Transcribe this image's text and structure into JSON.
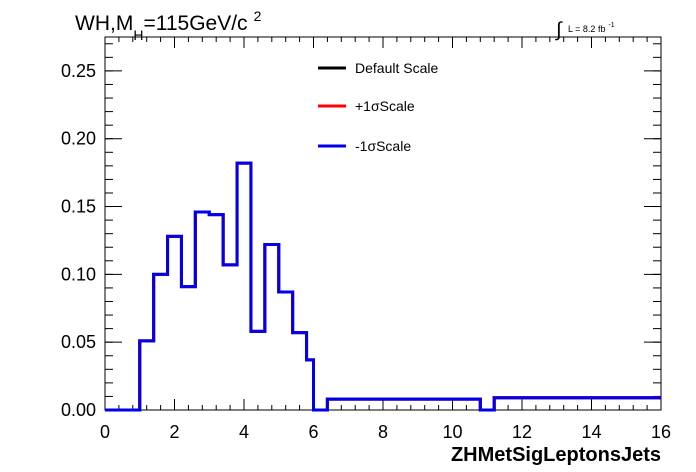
{
  "chart_data": {
    "type": "histogram-step",
    "title": {
      "prefix": "WH,M",
      "subscript": "H",
      "value": "=115GeV/c",
      "superscript": "2"
    },
    "lumi": {
      "integral": "∫",
      "text": "L = 8.2 fb",
      "superscript": "-1"
    },
    "xlabel": "ZHMetSigLeptonsJets",
    "ylabel": "",
    "xlim": [
      0,
      16
    ],
    "ylim": [
      0,
      0.275
    ],
    "x_ticks": [
      {
        "value": 0,
        "label": "0"
      },
      {
        "value": 2,
        "label": "2"
      },
      {
        "value": 4,
        "label": "4"
      },
      {
        "value": 6,
        "label": "6"
      },
      {
        "value": 8,
        "label": "8"
      },
      {
        "value": 10,
        "label": "10"
      },
      {
        "value": 12,
        "label": "12"
      },
      {
        "value": 14,
        "label": "14"
      },
      {
        "value": 16,
        "label": "16"
      }
    ],
    "y_ticks": [
      {
        "value": 0.0,
        "label": "0.00"
      },
      {
        "value": 0.05,
        "label": "0.05"
      },
      {
        "value": 0.1,
        "label": "0.10"
      },
      {
        "value": 0.15,
        "label": "0.15"
      },
      {
        "value": 0.2,
        "label": "0.20"
      },
      {
        "value": 0.25,
        "label": "0.25"
      }
    ],
    "bin_edges": [
      0,
      0.4,
      0.8,
      1.0,
      1.4,
      1.8,
      2.2,
      2.6,
      3.0,
      3.4,
      3.8,
      4.2,
      4.6,
      5.0,
      5.4,
      5.8,
      6.0,
      6.4,
      10.8,
      11.2,
      16.0
    ],
    "series": [
      {
        "name": "Default Scale",
        "color": "#000000",
        "values": [
          0,
          0,
          0,
          0.051,
          0.1,
          0.128,
          0.091,
          0.146,
          0.144,
          0.107,
          0.182,
          0.058,
          0.122,
          0.087,
          0.057,
          0.037,
          0.0,
          0.008,
          0,
          0.009
        ]
      },
      {
        "name": "+1σScale",
        "color": "#ff0000",
        "values": [
          0,
          0,
          0,
          0.051,
          0.1,
          0.128,
          0.091,
          0.146,
          0.144,
          0.107,
          0.182,
          0.058,
          0.122,
          0.087,
          0.057,
          0.037,
          0.0,
          0.008,
          0,
          0.009
        ]
      },
      {
        "name": "-1σScale",
        "color": "#0000ee",
        "values": [
          0,
          0,
          0,
          0.051,
          0.1,
          0.128,
          0.091,
          0.146,
          0.144,
          0.107,
          0.182,
          0.058,
          0.122,
          0.087,
          0.057,
          0.037,
          0.0,
          0.008,
          0,
          0.009
        ]
      }
    ],
    "legend_placement": "top-center",
    "grid": false
  }
}
